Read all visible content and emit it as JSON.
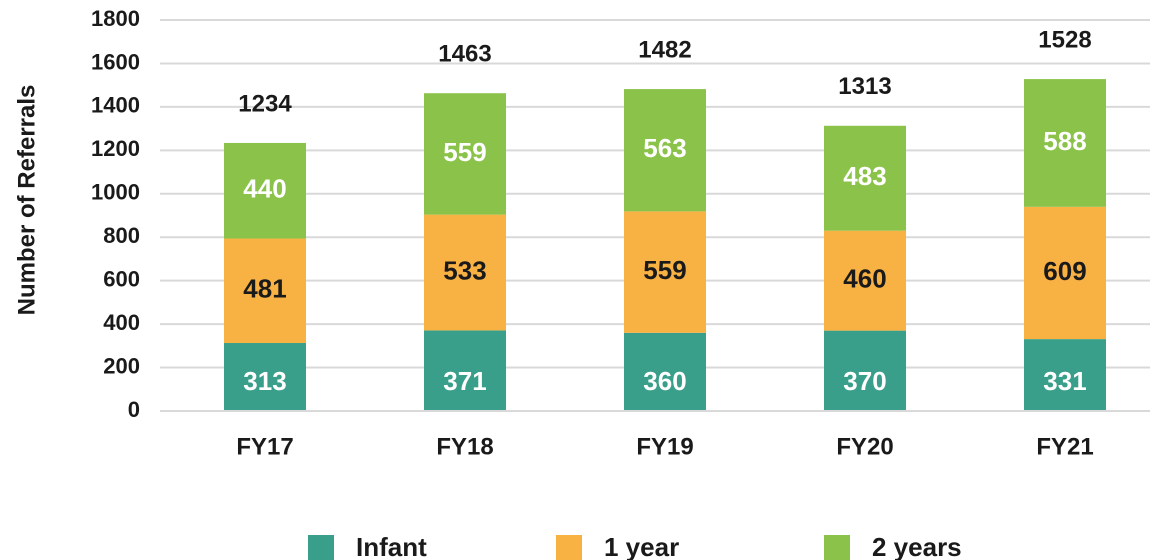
{
  "chart_data": {
    "type": "stacked_bar",
    "ylabel": "Number of Referrals",
    "categories": [
      "FY17",
      "FY18",
      "FY19",
      "FY20",
      "FY21"
    ],
    "series": [
      {
        "name": "Infant",
        "color": "#3a9f8a",
        "values": [
          313,
          371,
          360,
          370,
          331
        ]
      },
      {
        "name": "1 year",
        "color": "#f8b143",
        "values": [
          481,
          533,
          559,
          460,
          609
        ]
      },
      {
        "name": "2 years",
        "color": "#8bc34a",
        "values": [
          440,
          559,
          563,
          483,
          588
        ]
      }
    ],
    "totals": [
      1234,
      1463,
      1482,
      1313,
      1528
    ],
    "ylim": [
      0,
      1800
    ],
    "yticks": [
      0,
      200,
      400,
      600,
      800,
      1000,
      1200,
      1400,
      1600,
      1800
    ],
    "grid": true,
    "legend": "bottom"
  }
}
